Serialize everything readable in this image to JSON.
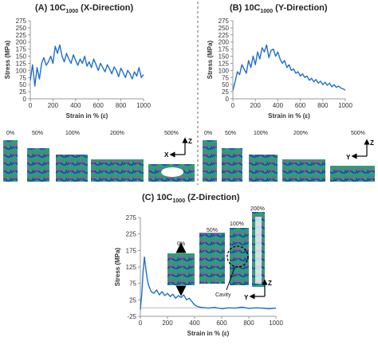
{
  "panels": {
    "A": {
      "prefix": "(A) 10C",
      "sub": "1000",
      "suffix": " (X-Direction)"
    },
    "B": {
      "prefix": "(B) 10C",
      "sub": "1000",
      "suffix": " (Y-Direction)"
    },
    "C": {
      "prefix": "(C) 10C",
      "sub": "1000",
      "suffix": " (Z-Direction)"
    }
  },
  "microstructure": {
    "xy_strains": [
      "0%",
      "50%",
      "100%",
      "200%",
      "500%"
    ],
    "z_strains": [
      "0%",
      "50%",
      "100%",
      "200%"
    ],
    "cavity_label": "Cavity",
    "axis_labels": {
      "A": [
        "Z",
        "X"
      ],
      "B": [
        "Z",
        "Y"
      ],
      "C": [
        "Z",
        "Y"
      ]
    },
    "colors": {
      "green": "#2e9e6a",
      "blue": "#2a3fbf",
      "magenta": "#c43fb0",
      "teal": "#1fa3a3"
    }
  },
  "colors": {
    "line": "#1f6fd1",
    "axis": "#999999",
    "divider": "#666666"
  },
  "chart_data": [
    {
      "type": "line",
      "title": "(A) 10C1000 (X-Direction)",
      "xlabel": "Strain in % (ε)",
      "ylabel": "Stress (MPa)",
      "xlim": [
        0,
        1000
      ],
      "ylim": [
        0,
        275
      ],
      "xticks": [
        0,
        200,
        400,
        600,
        800,
        1000
      ],
      "yticks": [
        0,
        25,
        50,
        75,
        100,
        125,
        150,
        175,
        200,
        225,
        250,
        275
      ],
      "x": [
        0,
        20,
        40,
        60,
        80,
        100,
        120,
        140,
        160,
        180,
        200,
        220,
        240,
        260,
        280,
        300,
        320,
        340,
        360,
        380,
        400,
        420,
        440,
        460,
        480,
        500,
        520,
        540,
        560,
        580,
        600,
        620,
        640,
        660,
        680,
        700,
        720,
        740,
        760,
        780,
        800,
        820,
        840,
        860,
        880,
        900,
        920,
        940,
        960,
        980,
        1000
      ],
      "y": [
        65,
        120,
        45,
        110,
        70,
        125,
        145,
        118,
        130,
        150,
        125,
        185,
        160,
        190,
        150,
        130,
        160,
        140,
        125,
        155,
        135,
        118,
        140,
        125,
        150,
        115,
        130,
        110,
        140,
        120,
        100,
        125,
        110,
        95,
        120,
        105,
        88,
        112,
        100,
        78,
        108,
        92,
        75,
        100,
        88,
        70,
        95,
        80,
        110,
        75,
        85
      ]
    },
    {
      "type": "line",
      "title": "(B) 10C1000 (Y-Direction)",
      "xlabel": "Strain in % (ε)",
      "ylabel": "Stress (MPa)",
      "xlim": [
        0,
        1000
      ],
      "ylim": [
        0,
        275
      ],
      "xticks": [
        0,
        200,
        400,
        600,
        800,
        1000
      ],
      "yticks": [
        0,
        25,
        50,
        75,
        100,
        125,
        150,
        175,
        200,
        225,
        250,
        275
      ],
      "x": [
        0,
        20,
        40,
        60,
        80,
        100,
        120,
        140,
        160,
        180,
        200,
        220,
        240,
        260,
        280,
        300,
        320,
        340,
        360,
        380,
        400,
        420,
        440,
        460,
        480,
        500,
        520,
        540,
        560,
        580,
        600,
        620,
        640,
        660,
        680,
        700,
        720,
        740,
        760,
        780,
        800,
        820,
        840,
        860,
        880,
        900,
        920,
        940,
        960,
        980,
        1000
      ],
      "y": [
        30,
        60,
        95,
        85,
        120,
        105,
        90,
        135,
        110,
        150,
        120,
        165,
        140,
        180,
        165,
        190,
        145,
        170,
        175,
        150,
        165,
        140,
        125,
        135,
        110,
        120,
        100,
        105,
        90,
        95,
        80,
        88,
        75,
        80,
        65,
        72,
        60,
        68,
        55,
        62,
        50,
        58,
        48,
        55,
        42,
        50,
        40,
        45,
        38,
        35,
        30
      ]
    },
    {
      "type": "line",
      "title": "(C) 10C1000 (Z-Direction)",
      "xlabel": "Strain in % (ε)",
      "ylabel": "Stress (MPa)",
      "xlim": [
        0,
        1000
      ],
      "ylim": [
        -25,
        275
      ],
      "xticks": [
        0,
        200,
        400,
        600,
        800,
        1000
      ],
      "yticks": [
        -25,
        25,
        75,
        125,
        175,
        225,
        275
      ],
      "x": [
        0,
        10,
        20,
        30,
        40,
        50,
        60,
        80,
        100,
        120,
        140,
        160,
        180,
        200,
        220,
        240,
        260,
        280,
        300,
        320,
        340,
        360,
        380,
        400,
        420,
        450,
        500,
        550,
        600,
        650,
        700,
        750,
        800,
        850,
        900,
        950,
        1000
      ],
      "y": [
        -5,
        40,
        110,
        155,
        120,
        90,
        70,
        50,
        45,
        55,
        40,
        50,
        38,
        45,
        35,
        42,
        30,
        38,
        32,
        40,
        25,
        30,
        20,
        10,
        5,
        2,
        0,
        2,
        -2,
        1,
        0,
        3,
        -1,
        1,
        0,
        -2,
        0
      ]
    }
  ]
}
